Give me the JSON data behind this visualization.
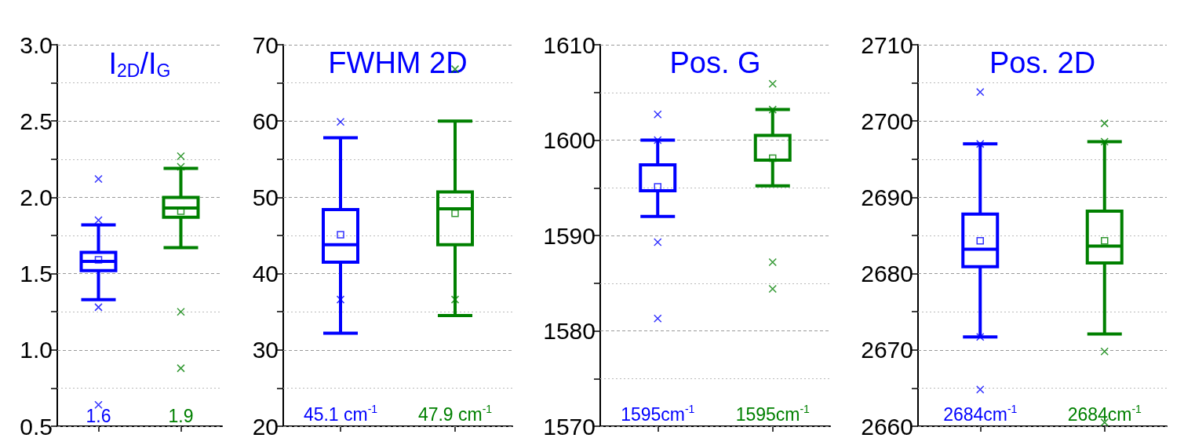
{
  "chart_data": [
    {
      "type": "box",
      "title": "I$_{2D}$/I$_{G}$",
      "categories": [
        null,
        null
      ],
      "colors": [
        "#0000ff",
        "#008000"
      ],
      "boxes": [
        {
          "low": 1.33,
          "q1": 1.52,
          "median": 1.58,
          "q3": 1.64,
          "high": 1.82,
          "mean": 1.59,
          "outliers": [
            1.85,
            1.28,
            2.12,
            0.64
          ]
        },
        {
          "low": 1.67,
          "q1": 1.87,
          "median": 1.93,
          "q3": 2.0,
          "high": 2.19,
          "mean": 1.91,
          "outliers": [
            2.2,
            1.25,
            2.27,
            0.88
          ]
        }
      ],
      "ylim": [
        0.5,
        3.0
      ],
      "yticks": [
        0.5,
        {
          "value": 0.75,
          "label": null
        },
        {
          "value": 1.0,
          "label": "1.0"
        },
        {
          "value": 1.25,
          "label": null
        },
        1.5,
        {
          "value": 1.75,
          "label": null
        },
        {
          "value": 2.0,
          "label": "2.0"
        },
        {
          "value": 2.25,
          "label": null
        },
        2.5,
        {
          "value": 2.75,
          "label": null
        },
        {
          "value": 3.0,
          "label": "3.0"
        }
      ],
      "grid": true,
      "annotations": [
        "1.6",
        "1.9"
      ]
    },
    {
      "type": "box",
      "title": "FWHM 2D",
      "categories": [
        null,
        null
      ],
      "colors": [
        "#0000ff",
        "#008000"
      ],
      "boxes": [
        {
          "low": 32.2,
          "q1": 41.5,
          "median": 43.8,
          "q3": 48.4,
          "high": 57.8,
          "mean": 45.1,
          "outliers": [
            59.9,
            36.6
          ]
        },
        {
          "low": 34.5,
          "q1": 43.8,
          "median": 48.5,
          "q3": 50.7,
          "high": 60.0,
          "mean": 47.9,
          "outliers": [
            66.8,
            36.6
          ]
        }
      ],
      "ylim": [
        20,
        70
      ],
      "yticks": [
        20,
        {
          "value": 25,
          "label": null
        },
        30,
        {
          "value": 35,
          "label": null
        },
        40,
        {
          "value": 45,
          "label": null
        },
        50,
        {
          "value": 55,
          "label": null
        },
        60,
        {
          "value": 65,
          "label": null
        },
        70
      ],
      "grid": true,
      "annotations": [
        "45.1 cm$^{-1}$",
        "47.9 cm$^{-1}$"
      ]
    },
    {
      "type": "box",
      "title": "Pos. G",
      "categories": [
        null,
        null
      ],
      "colors": [
        "#0000ff",
        "#008000"
      ],
      "boxes": [
        {
          "low": 1592.0,
          "q1": 1594.7,
          "median": 1594.7,
          "q3": 1597.4,
          "high": 1600.0,
          "mean": 1595.1,
          "outliers": [
            1600.0,
            1589.3,
            1602.7,
            1581.3
          ]
        },
        {
          "low": 1595.2,
          "q1": 1597.9,
          "median": 1597.9,
          "q3": 1600.5,
          "high": 1603.2,
          "mean": 1598.1,
          "outliers": [
            1603.2,
            1587.2,
            1605.9,
            1584.4
          ]
        }
      ],
      "ylim": [
        1570,
        1610
      ],
      "yticks": [
        1570,
        {
          "value": 1575,
          "label": null
        },
        1580,
        {
          "value": 1585,
          "label": null
        },
        1590,
        {
          "value": 1595,
          "label": null
        },
        1600,
        {
          "value": 1605,
          "label": null
        },
        1610
      ],
      "grid": true,
      "annotations": [
        "1595cm$^{-1}$",
        "1595cm$^{-1}$"
      ]
    },
    {
      "type": "box",
      "title": "Pos. 2D",
      "categories": [
        null,
        null
      ],
      "colors": [
        "#0000ff",
        "#008000"
      ],
      "boxes": [
        {
          "low": 2671.7,
          "q1": 2680.9,
          "median": 2683.2,
          "q3": 2687.8,
          "high": 2697.0,
          "mean": 2684.3,
          "outliers": [
            2697.0,
            2671.7,
            2703.8,
            2664.8
          ]
        },
        {
          "low": 2672.1,
          "q1": 2681.4,
          "median": 2683.6,
          "q3": 2688.2,
          "high": 2697.3,
          "mean": 2684.3,
          "outliers": [
            2697.3,
            2669.8,
            2699.7,
            2660.5
          ]
        }
      ],
      "ylim": [
        2660,
        2710
      ],
      "yticks": [
        2660,
        {
          "value": 2665,
          "label": null
        },
        2670,
        {
          "value": 2675,
          "label": null
        },
        2680,
        {
          "value": 2685,
          "label": null
        },
        2690,
        {
          "value": 2695,
          "label": null
        },
        2700,
        {
          "value": 2705,
          "label": null
        },
        2710
      ],
      "grid": true,
      "annotations": [
        "2684cm$^{-1}$",
        "2684cm$^{-1}$"
      ]
    }
  ]
}
